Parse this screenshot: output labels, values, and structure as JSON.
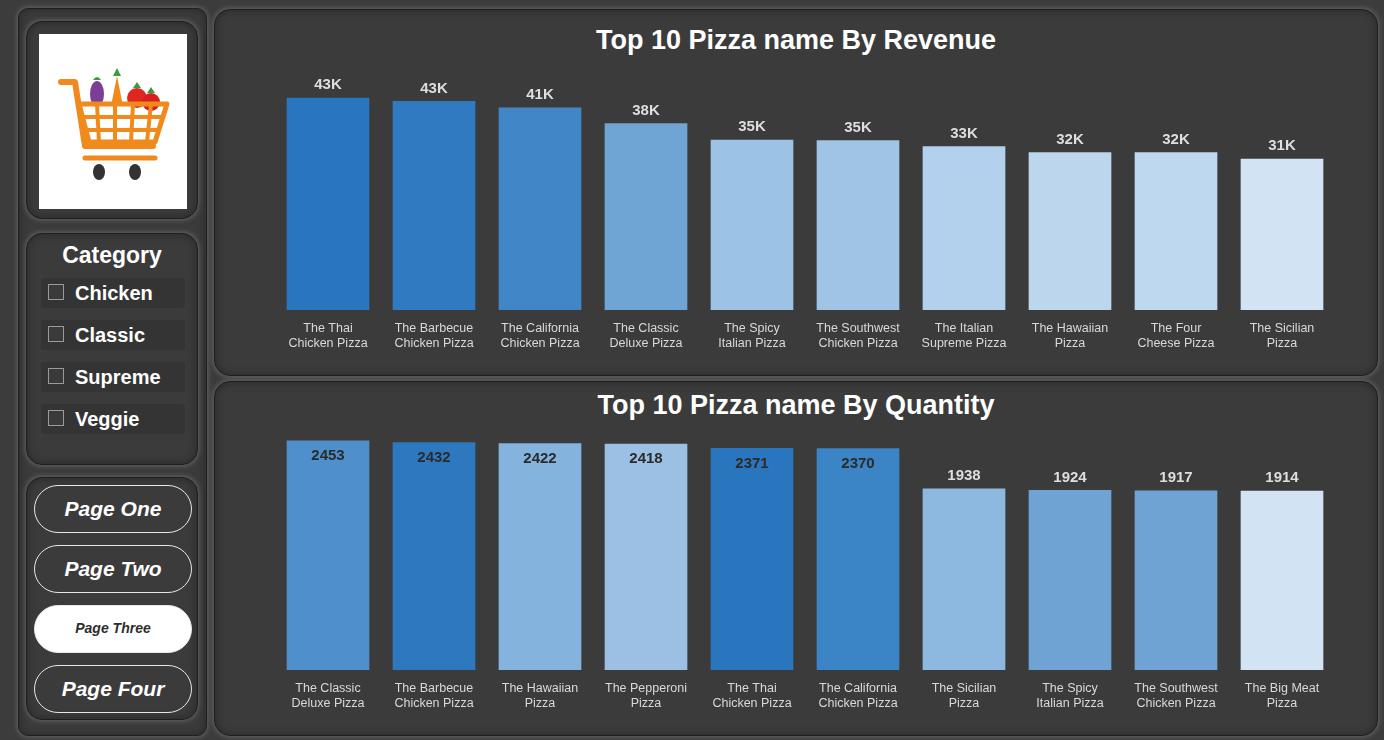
{
  "sidebar": {
    "slicer": {
      "title": "Category",
      "items": [
        "Chicken",
        "Classic",
        "Supreme",
        "Veggie"
      ]
    },
    "buttons": [
      {
        "label": "Page One"
      },
      {
        "label": "Page Two"
      },
      {
        "label": "Page Three",
        "selected": true
      },
      {
        "label": "Page Four"
      }
    ]
  },
  "chart_data": [
    {
      "type": "bar",
      "title": "Top 10 Pizza name By Revenue",
      "categories": [
        "The Thai Chicken Pizza",
        "The Barbecue Chicken Pizza",
        "The California Chicken Pizza",
        "The Classic Deluxe Pizza",
        "The Spicy Italian Pizza",
        "The Southwest Chicken Pizza",
        "The Italian Supreme Pizza",
        "The Hawaiian Pizza",
        "The Four Cheese Pizza",
        "The Sicilian Pizza"
      ],
      "values": [
        43.43,
        42.77,
        41.41,
        38.18,
        34.83,
        34.71,
        33.48,
        32.27,
        32.27,
        30.94
      ],
      "value_labels": [
        "43K",
        "43K",
        "41K",
        "38K",
        "35K",
        "35K",
        "33K",
        "32K",
        "32K",
        "31K"
      ],
      "colors": [
        "#2a76be",
        "#2f7ac0",
        "#4187c7",
        "#6fa5d4",
        "#9cc2e5",
        "#9fc4e6",
        "#b3d1ec",
        "#bcd6ee",
        "#bed8ef",
        "#d2e3f3"
      ],
      "data_labels": true,
      "tick_labels": "x",
      "grid": false
    },
    {
      "type": "bar",
      "title": "Top 10 Pizza name By Quantity",
      "categories": [
        "The Classic Deluxe Pizza",
        "The Barbecue Chicken Pizza",
        "The Hawaiian Pizza",
        "The Pepperoni Pizza",
        "The Thai Chicken Pizza",
        "The California Chicken Pizza",
        "The Sicilian Pizza",
        "The Spicy Italian Pizza",
        "The Southwest Chicken Pizza",
        "The Big Meat Pizza"
      ],
      "values": [
        2453,
        2432,
        2422,
        2418,
        2371,
        2370,
        1938,
        1924,
        1917,
        1914
      ],
      "colors": [
        "#4f8fcb",
        "#2e78bf",
        "#84b3dd",
        "#9bc0e3",
        "#2a76be",
        "#3b84c6",
        "#8db9e0",
        "#6ea3d3",
        "#6ea3d3",
        "#d2e3f3"
      ],
      "data_labels": true,
      "tick_labels": "x",
      "grid": false
    }
  ]
}
